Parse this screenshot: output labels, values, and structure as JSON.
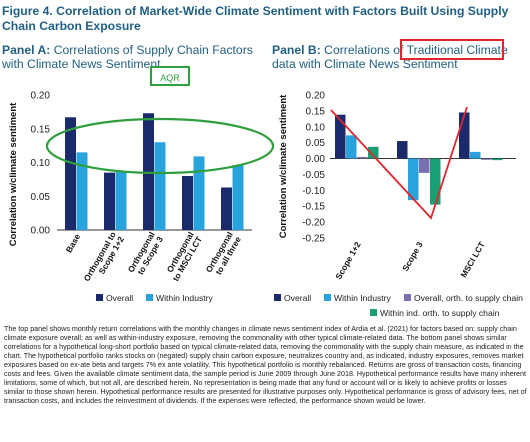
{
  "figure_title": "Figure 4. Correlation of Market-Wide Climate Sentiment with Factors Built Using Supply Chain Carbon Exposure",
  "panel_a": {
    "label": "Panel A:",
    "subtitle": "Correlations of Supply Chain Factors with Climate News Sentiment"
  },
  "panel_b": {
    "label": "Panel B:",
    "subtitle": "Correlations of Traditional Climate data with Climate News Sentiment",
    "highlight_text": "Traditional Climate"
  },
  "aqr_badge": "AQR",
  "colors": {
    "overall": "#1b2a6b",
    "within_industry": "#29a3dd",
    "overall_orth": "#7a6fb0",
    "within_orth": "#1a9e74",
    "accent_red": "#e0262b",
    "accent_green": "#2e9e3e",
    "title": "#1f5f86"
  },
  "chart_data": [
    {
      "type": "bar",
      "ylabel": "Correlation w/climate sentiment",
      "ylim": [
        0,
        0.2
      ],
      "yticks": [
        "0.20",
        "0.15",
        "0.10",
        "0.05",
        "0.00"
      ],
      "categories": [
        "Base",
        "Orthogonal to Scope 1+2",
        "Orthogonal to Scope 3",
        "Orthogonal to MSCI LCT",
        "Orthogonal to all three"
      ],
      "category_lines": [
        [
          "Base"
        ],
        [
          "Orthogonal to",
          "Scope 1+2"
        ],
        [
          "Orthogonal",
          "to Scope 3"
        ],
        [
          "Orthogonal",
          "to MSCI LCT"
        ],
        [
          "Orthogonal",
          "to all three"
        ]
      ],
      "series": [
        {
          "name": "Overall",
          "values": [
            0.167,
            0.085,
            0.173,
            0.08,
            0.063
          ]
        },
        {
          "name": "Within Industry",
          "values": [
            0.115,
            0.087,
            0.13,
            0.109,
            0.096
          ]
        }
      ],
      "legend": "bottom"
    },
    {
      "type": "bar",
      "ylabel": "Correlation w/climate sentiment",
      "ylim": [
        -0.25,
        0.2
      ],
      "yticks": [
        "0.20",
        "0.15",
        "0.10",
        "0.05",
        "0.00",
        "-0.05",
        "-0.10",
        "-0.15",
        "-0.20",
        "-0.25"
      ],
      "categories": [
        "Scope 1+2",
        "Scope 3",
        "MSCI LCT"
      ],
      "series": [
        {
          "name": "Overall",
          "values": [
            0.138,
            0.055,
            0.145
          ]
        },
        {
          "name": "Within Industry",
          "values": [
            0.073,
            -0.131,
            0.021
          ]
        },
        {
          "name": "Overall, orth. to supply chain",
          "values": [
            0.005,
            -0.045,
            -0.004
          ]
        },
        {
          "name": "Within ind. orth. to supply chain",
          "values": [
            0.037,
            -0.145,
            -0.005
          ]
        }
      ],
      "legend": "bottom"
    }
  ],
  "footnote": "The top panel shows monthly return correlations with the monthly changes in climate news sentiment index of Ardia et al. (2021) for factors based on: supply chain climate exposure overall; as well as within-industry exposure, removing the commonality with other typical climate-related data. The bottom panel shows similar correlations for a hypothetical long-short portfolio based on typical climate-related data, removing the commonality with the supply chain measure, as indicated in the chart. The hypothetical portfolio ranks stocks on (negated) supply chain carbon exposure, neutralizes country and, as indicated, industry exposures, removes market exposures based on ex-ate beta and targets 7% ex ante volatility. This hypothetical portfolio is monthly rebalanced. Returns are gross of transaction costs, financing costs and fees. Given the available climate sentiment data, the sample period is June 2009 through June 2018. Hypothetical performance results have many inherent limitations, some of which, but not all, are described herein. No representation is being made that any fund or account will or is likely to achieve profits or losses similar to those shown herein. Hypothetical performance results are presented for illustrative purposes only. Hypothetical performance is gross of advisory fees, net of transaction costs, and includes the reinvestment of dividends. If the expenses were reflected, the performance shown would be lower."
}
